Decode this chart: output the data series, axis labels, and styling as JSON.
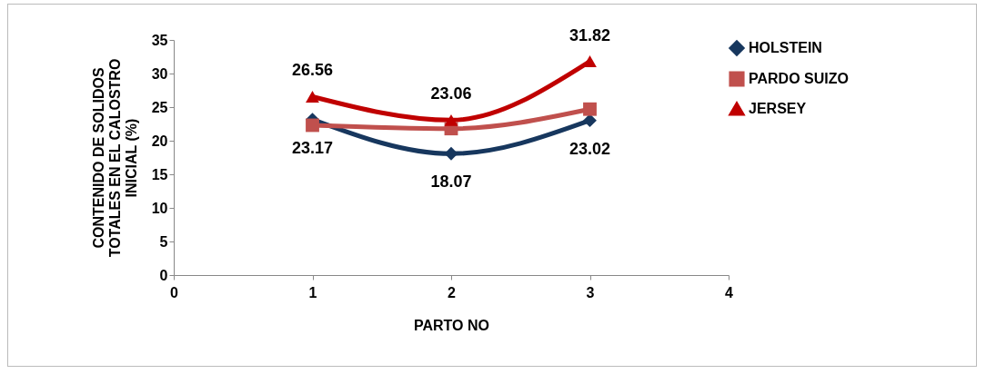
{
  "chart_data": {
    "type": "line",
    "xlabel": "PARTO NO",
    "ylabel": "CONTENIDO DE SOLIDOS TOTALES EN EL CALOSTRO INICIAL (%)",
    "x": [
      1,
      2,
      3
    ],
    "xlim": [
      0,
      4
    ],
    "xticks": [
      0,
      1,
      2,
      3,
      4
    ],
    "ylim": [
      0,
      35
    ],
    "yticks": [
      0,
      5,
      10,
      15,
      20,
      25,
      30,
      35
    ],
    "grid": false,
    "legend": "right",
    "series": [
      {
        "name": "HOLSTEIN",
        "color": "#17375e",
        "marker": "diamond",
        "values": [
          23.17,
          18.07,
          23.02
        ],
        "value_labels": [
          "23.17",
          "18.07",
          "23.02"
        ]
      },
      {
        "name": "PARDO SUIZO",
        "color": "#c0504d",
        "marker": "square",
        "values": [
          22.3,
          21.8,
          24.7
        ]
      },
      {
        "name": "JERSEY",
        "color": "#c00000",
        "marker": "triangle",
        "values": [
          26.56,
          23.06,
          31.82
        ],
        "value_labels": [
          "26.56",
          "23.06",
          "31.82"
        ]
      }
    ]
  }
}
